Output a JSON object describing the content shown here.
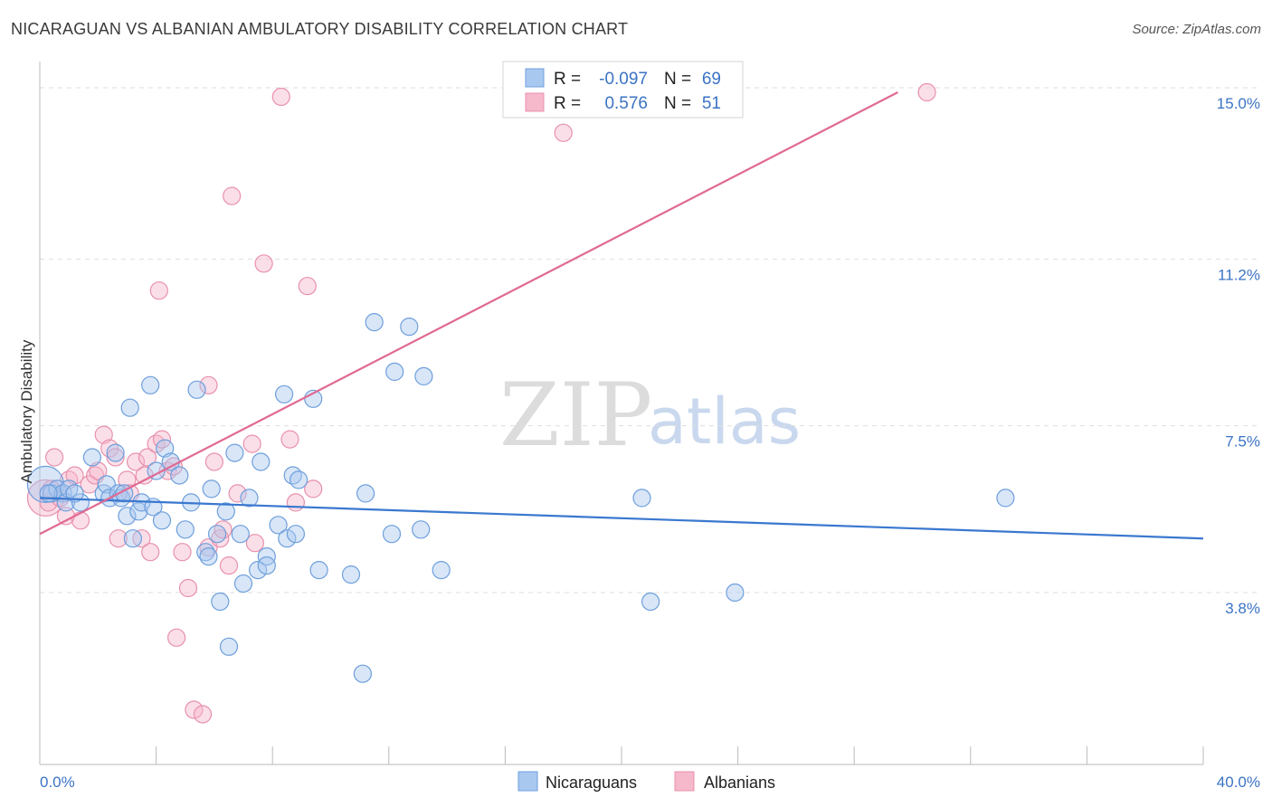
{
  "header": {
    "title": "NICARAGUAN VS ALBANIAN AMBULATORY DISABILITY CORRELATION CHART",
    "source": "Source: ZipAtlas.com"
  },
  "watermark": {
    "zip": "ZIP",
    "atlas": "atlas"
  },
  "legend": {
    "rows": [
      {
        "r_label": "R =",
        "r_value": "-0.097",
        "n_label": "N =",
        "n_value": "69",
        "color": "#a9c8f0"
      },
      {
        "r_label": "R =",
        "r_value": "0.576",
        "n_label": "N =",
        "n_value": "51",
        "color": "#f6b8cb"
      }
    ]
  },
  "bottom_legend": {
    "series1": "Nicaraguans",
    "series2": "Albanians"
  },
  "colors": {
    "blue_fill": "#a9c8f0",
    "blue_stroke": "#6e9fdc",
    "blue_line": "#3a78cf",
    "pink_fill": "#f6b8cb",
    "pink_stroke": "#e891ac",
    "pink_line": "#e06a93",
    "tick": "#3b73c4"
  },
  "chart_data": {
    "type": "scatter",
    "title": "NICARAGUAN VS ALBANIAN AMBULATORY DISABILITY CORRELATION CHART",
    "xlabel": "",
    "ylabel": "Ambulatory Disability",
    "xlim": [
      0,
      40
    ],
    "ylim": [
      0,
      16
    ],
    "x_tick_labels": {
      "min": "0.0%",
      "max": "40.0%"
    },
    "y_ticks": [
      {
        "value": 3.8,
        "label": "3.8%"
      },
      {
        "value": 7.5,
        "label": "7.5%"
      },
      {
        "value": 11.2,
        "label": "11.2%"
      },
      {
        "value": 15.0,
        "label": "15.0%"
      }
    ],
    "series": [
      {
        "name": "Nicaraguans",
        "trend": {
          "x0": 0,
          "y0": 5.9,
          "x1": 40,
          "y1": 5.0
        },
        "points": [
          [
            0.2,
            6.2
          ],
          [
            0.4,
            6.0
          ],
          [
            0.6,
            6.1
          ],
          [
            0.8,
            6.0
          ],
          [
            0.9,
            5.8
          ],
          [
            1.0,
            6.1
          ],
          [
            1.4,
            5.8
          ],
          [
            1.8,
            6.8
          ],
          [
            2.2,
            6.0
          ],
          [
            2.3,
            6.2
          ],
          [
            2.4,
            5.9
          ],
          [
            2.6,
            6.9
          ],
          [
            2.7,
            6.0
          ],
          [
            2.8,
            5.9
          ],
          [
            2.9,
            6.0
          ],
          [
            3.0,
            5.5
          ],
          [
            3.1,
            7.9
          ],
          [
            3.2,
            5.0
          ],
          [
            3.4,
            5.6
          ],
          [
            3.5,
            5.8
          ],
          [
            3.8,
            8.4
          ],
          [
            3.9,
            5.7
          ],
          [
            4.0,
            6.5
          ],
          [
            4.2,
            5.4
          ],
          [
            4.3,
            7.0
          ],
          [
            4.5,
            6.7
          ],
          [
            4.8,
            6.4
          ],
          [
            5.0,
            5.2
          ],
          [
            5.2,
            5.8
          ],
          [
            5.4,
            8.3
          ],
          [
            5.7,
            4.7
          ],
          [
            5.8,
            4.6
          ],
          [
            5.9,
            6.1
          ],
          [
            6.1,
            5.1
          ],
          [
            6.2,
            3.6
          ],
          [
            6.4,
            5.6
          ],
          [
            6.5,
            2.6
          ],
          [
            6.7,
            6.9
          ],
          [
            6.9,
            5.1
          ],
          [
            7.0,
            4.0
          ],
          [
            7.2,
            5.9
          ],
          [
            7.5,
            4.3
          ],
          [
            7.6,
            6.7
          ],
          [
            7.8,
            4.6
          ],
          [
            7.8,
            4.4
          ],
          [
            8.2,
            5.3
          ],
          [
            8.4,
            8.2
          ],
          [
            8.5,
            5.0
          ],
          [
            8.7,
            6.4
          ],
          [
            8.8,
            5.1
          ],
          [
            8.9,
            6.3
          ],
          [
            9.4,
            8.1
          ],
          [
            9.6,
            4.3
          ],
          [
            10.7,
            4.2
          ],
          [
            11.1,
            2.0
          ],
          [
            11.2,
            6.0
          ],
          [
            11.5,
            9.8
          ],
          [
            12.1,
            5.1
          ],
          [
            12.2,
            8.7
          ],
          [
            12.7,
            9.7
          ],
          [
            13.1,
            5.2
          ],
          [
            13.2,
            8.6
          ],
          [
            13.8,
            4.3
          ],
          [
            20.7,
            5.9
          ],
          [
            21.0,
            3.6
          ],
          [
            23.9,
            3.8
          ],
          [
            33.2,
            5.9
          ],
          [
            0.3,
            6.0
          ],
          [
            1.2,
            6.0
          ]
        ]
      },
      {
        "name": "Albanians",
        "trend": {
          "x0": 0,
          "y0": 5.1,
          "x1": 29.5,
          "y1": 14.9
        },
        "points": [
          [
            0.2,
            5.9
          ],
          [
            0.3,
            5.8
          ],
          [
            0.5,
            6.8
          ],
          [
            0.7,
            5.9
          ],
          [
            0.9,
            5.5
          ],
          [
            1.0,
            6.3
          ],
          [
            1.2,
            6.4
          ],
          [
            1.4,
            5.4
          ],
          [
            1.7,
            6.2
          ],
          [
            1.9,
            6.4
          ],
          [
            2.0,
            6.5
          ],
          [
            2.2,
            7.3
          ],
          [
            2.4,
            7.0
          ],
          [
            2.6,
            6.8
          ],
          [
            2.7,
            5.0
          ],
          [
            3.0,
            6.3
          ],
          [
            3.1,
            6.0
          ],
          [
            3.3,
            6.7
          ],
          [
            3.5,
            5.0
          ],
          [
            3.6,
            6.4
          ],
          [
            3.7,
            6.8
          ],
          [
            3.8,
            4.7
          ],
          [
            4.0,
            7.1
          ],
          [
            4.1,
            10.5
          ],
          [
            4.2,
            7.2
          ],
          [
            4.4,
            6.5
          ],
          [
            4.6,
            6.6
          ],
          [
            4.7,
            2.8
          ],
          [
            4.9,
            4.7
          ],
          [
            5.1,
            3.9
          ],
          [
            5.3,
            1.2
          ],
          [
            5.6,
            1.1
          ],
          [
            5.8,
            4.8
          ],
          [
            5.8,
            8.4
          ],
          [
            6.0,
            6.7
          ],
          [
            6.2,
            5.0
          ],
          [
            6.3,
            5.2
          ],
          [
            6.5,
            4.4
          ],
          [
            6.6,
            12.6
          ],
          [
            6.8,
            6.0
          ],
          [
            7.3,
            7.1
          ],
          [
            7.4,
            4.9
          ],
          [
            7.7,
            11.1
          ],
          [
            8.3,
            14.8
          ],
          [
            8.6,
            7.2
          ],
          [
            8.8,
            5.8
          ],
          [
            9.2,
            10.6
          ],
          [
            9.4,
            6.1
          ],
          [
            18.0,
            14.0
          ],
          [
            30.5,
            14.9
          ],
          [
            0.4,
            6.1
          ]
        ]
      }
    ],
    "bubble_sizes": {
      "Nicaraguans": [
        [
          0.2,
          6.2,
          "large"
        ]
      ],
      "Albanians": [
        [
          0.2,
          5.9,
          "large"
        ]
      ]
    }
  }
}
